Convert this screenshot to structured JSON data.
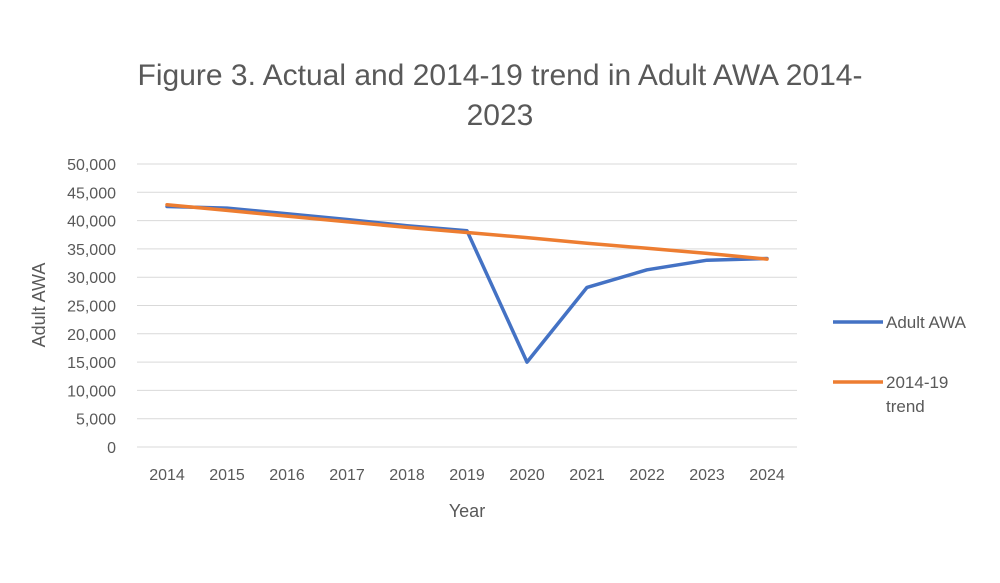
{
  "chart_data": {
    "type": "line",
    "title_line1": "Figure 3. Actual and 2014-19 trend in Adult AWA 2014-",
    "title_line2": "2023",
    "xlabel": "Year",
    "ylabel": "Adult AWA",
    "ylim": [
      0,
      50000
    ],
    "yticks": [
      0,
      5000,
      10000,
      15000,
      20000,
      25000,
      30000,
      35000,
      40000,
      45000,
      50000
    ],
    "ytick_labels": [
      "0",
      "5,000",
      "10,000",
      "15,000",
      "20,000",
      "25,000",
      "30,000",
      "35,000",
      "40,000",
      "45,000",
      "50,000"
    ],
    "x": [
      "2014",
      "2015",
      "2016",
      "2017",
      "2018",
      "2019",
      "2020",
      "2021",
      "2022",
      "2023",
      "2024"
    ],
    "grid": true,
    "legend_position": "right",
    "series": [
      {
        "name": "Adult AWA",
        "color": "#4472C4",
        "values": [
          42500,
          42200,
          41200,
          40200,
          39100,
          38200,
          15000,
          28200,
          31300,
          33000,
          33300
        ]
      },
      {
        "name": "2014-19 trend",
        "legend_lines": [
          "2014-19",
          "trend"
        ],
        "color": "#ED7D31",
        "values": [
          42800,
          41800,
          40800,
          39800,
          38800,
          37900,
          37000,
          36000,
          35100,
          34200,
          33200
        ]
      }
    ]
  }
}
